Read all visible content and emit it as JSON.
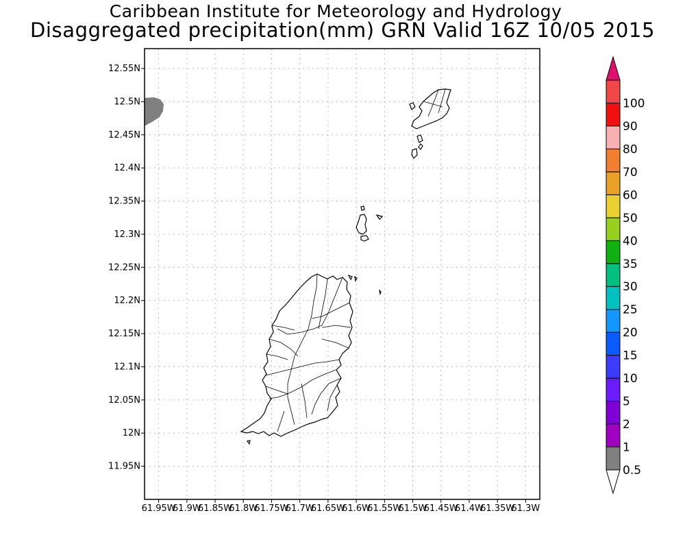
{
  "titles": {
    "line1": "Caribbean Institute for Meteorology and Hydrology",
    "line2": "Disaggregated precipitation(mm) GRN Valid 16Z 10/05 2015"
  },
  "map": {
    "lon_range": [
      -61.975,
      -61.275
    ],
    "lat_range": [
      11.9,
      12.58
    ],
    "grid": true,
    "lat_ticks": [
      {
        "value": 12.55,
        "label": "12.55N"
      },
      {
        "value": 12.5,
        "label": "12.5N"
      },
      {
        "value": 12.45,
        "label": "12.45N"
      },
      {
        "value": 12.4,
        "label": "12.4N"
      },
      {
        "value": 12.35,
        "label": "12.35N"
      },
      {
        "value": 12.3,
        "label": "12.3N"
      },
      {
        "value": 12.25,
        "label": "12.25N"
      },
      {
        "value": 12.2,
        "label": "12.2N"
      },
      {
        "value": 12.15,
        "label": "12.15N"
      },
      {
        "value": 12.1,
        "label": "12.1N"
      },
      {
        "value": 12.05,
        "label": "12.05N"
      },
      {
        "value": 12.0,
        "label": "12N"
      },
      {
        "value": 11.95,
        "label": "11.95N"
      }
    ],
    "lon_ticks": [
      {
        "value": -61.95,
        "label": "61.95W"
      },
      {
        "value": -61.9,
        "label": "61.9W"
      },
      {
        "value": -61.85,
        "label": "61.85W"
      },
      {
        "value": -61.8,
        "label": "61.8W"
      },
      {
        "value": -61.75,
        "label": "61.75W"
      },
      {
        "value": -61.7,
        "label": "61.7W"
      },
      {
        "value": -61.65,
        "label": "61.65W"
      },
      {
        "value": -61.6,
        "label": "61.6W"
      },
      {
        "value": -61.55,
        "label": "61.55W"
      },
      {
        "value": -61.5,
        "label": "61.5W"
      },
      {
        "value": -61.45,
        "label": "61.45W"
      },
      {
        "value": -61.4,
        "label": "61.4W"
      },
      {
        "value": -61.35,
        "label": "61.35W"
      },
      {
        "value": -61.3,
        "label": "61.3W"
      }
    ],
    "precip_patch": {
      "color": "#808080",
      "bin": "0.5-1"
    }
  },
  "colorbar": {
    "bins": [
      {
        "label": "0.5",
        "color": "#808080"
      },
      {
        "label": "1",
        "color": "#a000c0"
      },
      {
        "label": "2",
        "color": "#8000d8"
      },
      {
        "label": "5",
        "color": "#6a1cff"
      },
      {
        "label": "10",
        "color": "#3c3cff"
      },
      {
        "label": "15",
        "color": "#0a5cff"
      },
      {
        "label": "20",
        "color": "#1496ff"
      },
      {
        "label": "25",
        "color": "#00c0c0"
      },
      {
        "label": "30",
        "color": "#00c080"
      },
      {
        "label": "35",
        "color": "#10b010"
      },
      {
        "label": "40",
        "color": "#98d020"
      },
      {
        "label": "50",
        "color": "#e8d030"
      },
      {
        "label": "60",
        "color": "#e8a028"
      },
      {
        "label": "70",
        "color": "#f08030"
      },
      {
        "label": "80",
        "color": "#f8b0b0"
      },
      {
        "label": "90",
        "color": "#f01010"
      },
      {
        "label": "100",
        "color": "#f04848"
      }
    ],
    "over_color": "#e0106e",
    "under_color": "#ffffff"
  }
}
